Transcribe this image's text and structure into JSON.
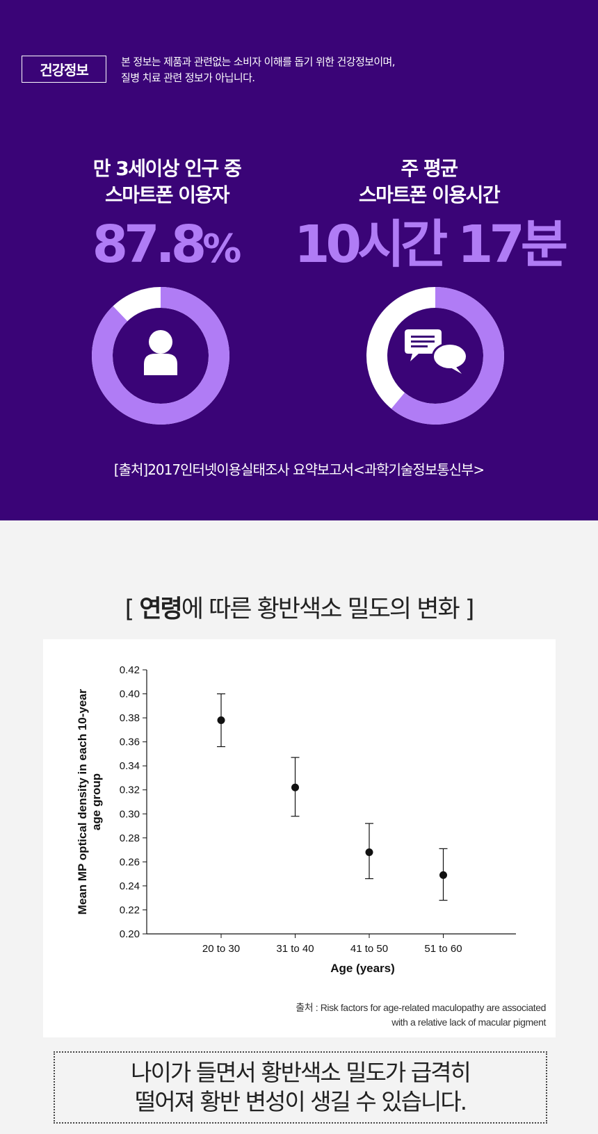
{
  "header": {
    "badge": "건강정보",
    "notice_line1": "본 정보는 제품과 관련없는 소비자 이해를 돕기 위한 건강정보이며,",
    "notice_line2": "질병 치료 관련 정보가 아닙니다."
  },
  "stats": [
    {
      "label_line1": "만 3세이상 인구 중",
      "label_line2": "스마트폰 이용자",
      "value": "87.8",
      "unit": "%",
      "percent": 87.8,
      "icon": "person-icon"
    },
    {
      "label_line1": "주 평균",
      "label_line2": "스마트폰 이용시간",
      "value": "10시간 17분",
      "percent": 61,
      "icon": "chat-bubbles-icon"
    }
  ],
  "source_text": "[출처]2017인터넷이용실태조사 요약보고서<과학기술정보통신부>",
  "section_title_prefix": "[ ",
  "section_title_bold": "연령",
  "section_title_rest": "에 따른 황반색소 밀도의 변화 ]",
  "colors": {
    "purple_bg": "#3a0477",
    "accent": "#b07cf5",
    "white": "#ffffff"
  },
  "chart_data": {
    "type": "scatter",
    "categories": [
      "20 to 30",
      "31 to 40",
      "41 to 50",
      "51 to 60"
    ],
    "values": [
      0.378,
      0.322,
      0.268,
      0.249
    ],
    "error_low": [
      0.356,
      0.298,
      0.246,
      0.228
    ],
    "error_high": [
      0.4,
      0.347,
      0.292,
      0.271
    ],
    "xlabel": "Age (years)",
    "ylabel_line1": "Mean MP optical density in each 10-year",
    "ylabel_line2": "age group",
    "ylim": [
      0.2,
      0.42
    ],
    "yticks": [
      "0.20",
      "0.22",
      "0.24",
      "0.26",
      "0.28",
      "0.30",
      "0.32",
      "0.34",
      "0.36",
      "0.38",
      "0.40",
      "0.42"
    ],
    "grid": false
  },
  "chart_source_line1": "출처 : Risk factors for age-related maculopathy are associated",
  "chart_source_line2": "with a relative lack of macular pigment",
  "conclusion_line1": "나이가 들면서 황반색소 밀도가 급격히",
  "conclusion_line2": "떨어져 황반 변성이 생길 수 있습니다."
}
